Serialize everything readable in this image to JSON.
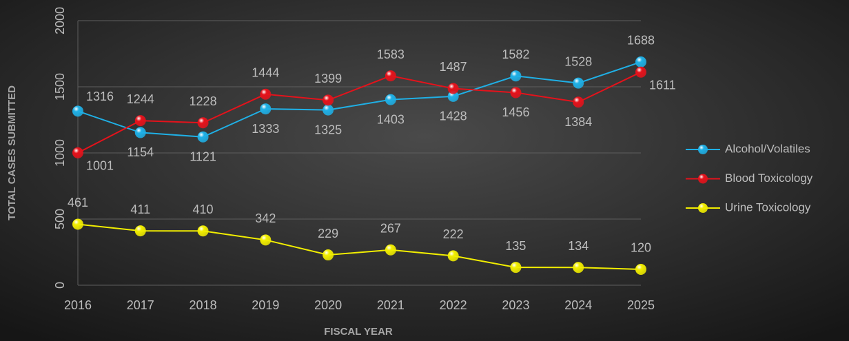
{
  "chart_data": {
    "type": "line",
    "xlabel": "FISCAL YEAR",
    "ylabel": "TOTAL CASES SUBMITTED",
    "categories": [
      "2016",
      "2017",
      "2018",
      "2019",
      "2020",
      "2021",
      "2022",
      "2023",
      "2024",
      "2025"
    ],
    "series": [
      {
        "name": "Alcohol/Volatiles",
        "color": "#1fb0e6",
        "values": [
          1316,
          1154,
          1121,
          1333,
          1325,
          1403,
          1428,
          1582,
          1528,
          1688
        ]
      },
      {
        "name": "Blood Toxicology",
        "color": "#e5121b",
        "values": [
          1001,
          1244,
          1228,
          1444,
          1399,
          1583,
          1487,
          1456,
          1384,
          1611
        ]
      },
      {
        "name": "Urine Toxicology",
        "color": "#f2ee00",
        "values": [
          461,
          411,
          410,
          342,
          229,
          267,
          222,
          135,
          134,
          120
        ]
      }
    ],
    "ylim": [
      0,
      2000
    ],
    "yticks": [
      0,
      500,
      1000,
      1500,
      2000
    ],
    "grid": true,
    "legend": "right"
  }
}
